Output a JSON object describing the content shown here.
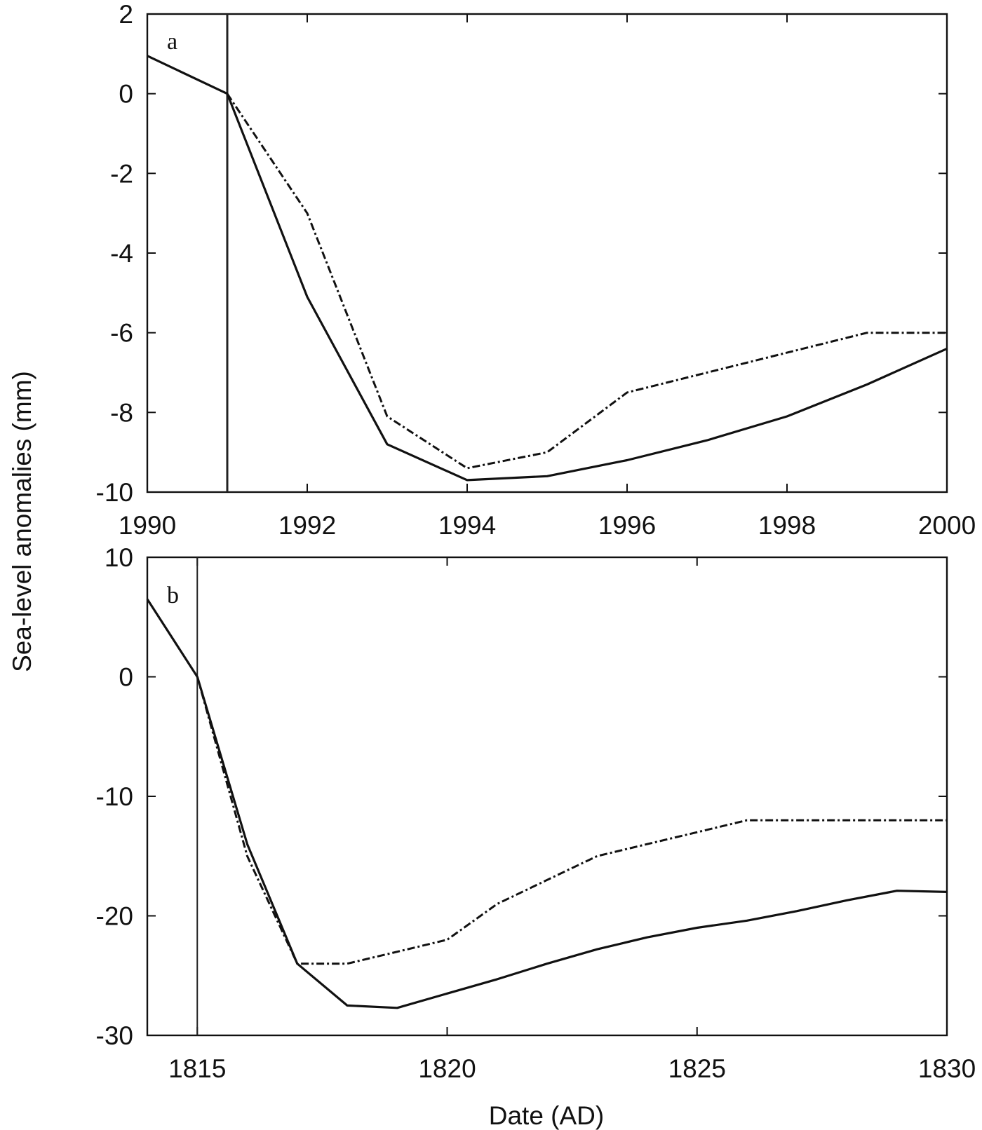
{
  "figure": {
    "ylabel": "Sea-level anomalies (mm)",
    "xlabel": "Date (AD)"
  },
  "chart_data": [
    {
      "type": "line",
      "panel_label": "a",
      "xlim": [
        1990,
        2000
      ],
      "ylim": [
        -10,
        2
      ],
      "xticks": [
        1990,
        1992,
        1994,
        1996,
        1998,
        2000
      ],
      "yticks": [
        -10,
        -8,
        -6,
        -4,
        -2,
        0,
        2
      ],
      "vline": 1991,
      "grid": false,
      "series": [
        {
          "style": "solid",
          "x": [
            1990,
            1991,
            1992,
            1993,
            1994,
            1995,
            1996,
            1997,
            1998,
            1999,
            2000
          ],
          "y": [
            0.95,
            0.0,
            -5.1,
            -8.8,
            -9.7,
            -9.6,
            -9.2,
            -8.7,
            -8.1,
            -7.3,
            -6.4
          ]
        },
        {
          "style": "dash-dot",
          "x": [
            1991,
            1992,
            1993,
            1994,
            1995,
            1996,
            1997,
            1998,
            1999,
            2000
          ],
          "y": [
            0.0,
            -3.0,
            -8.1,
            -9.4,
            -9.0,
            -7.5,
            -7.0,
            -6.5,
            -6.0,
            -6.0
          ]
        }
      ]
    },
    {
      "type": "line",
      "panel_label": "b",
      "xlim": [
        1814,
        1830
      ],
      "ylim": [
        -30,
        10
      ],
      "xticks": [
        1815,
        1820,
        1825,
        1830
      ],
      "yticks": [
        -30,
        -20,
        -10,
        0,
        10
      ],
      "vline": 1815,
      "grid": false,
      "series": [
        {
          "style": "solid",
          "x": [
            1814,
            1815,
            1816,
            1817,
            1818,
            1819,
            1820,
            1821,
            1822,
            1823,
            1824,
            1825,
            1826,
            1827,
            1828,
            1829,
            1830
          ],
          "y": [
            6.5,
            0.0,
            -14.0,
            -24.0,
            -27.5,
            -27.7,
            -26.5,
            -25.3,
            -24.0,
            -22.8,
            -21.8,
            -21.0,
            -20.4,
            -19.6,
            -18.7,
            -17.9,
            -18.0
          ]
        },
        {
          "style": "dash-dot",
          "x": [
            1815,
            1816,
            1817,
            1818,
            1819,
            1820,
            1821,
            1822,
            1823,
            1824,
            1825,
            1826,
            1827,
            1828,
            1829,
            1830
          ],
          "y": [
            0.0,
            -15.0,
            -24.0,
            -24.0,
            -23.0,
            -22.0,
            -19.0,
            -17.0,
            -15.0,
            -14.0,
            -13.0,
            -12.0,
            -12.0,
            -12.0,
            -12.0,
            -12.0
          ]
        }
      ]
    }
  ]
}
